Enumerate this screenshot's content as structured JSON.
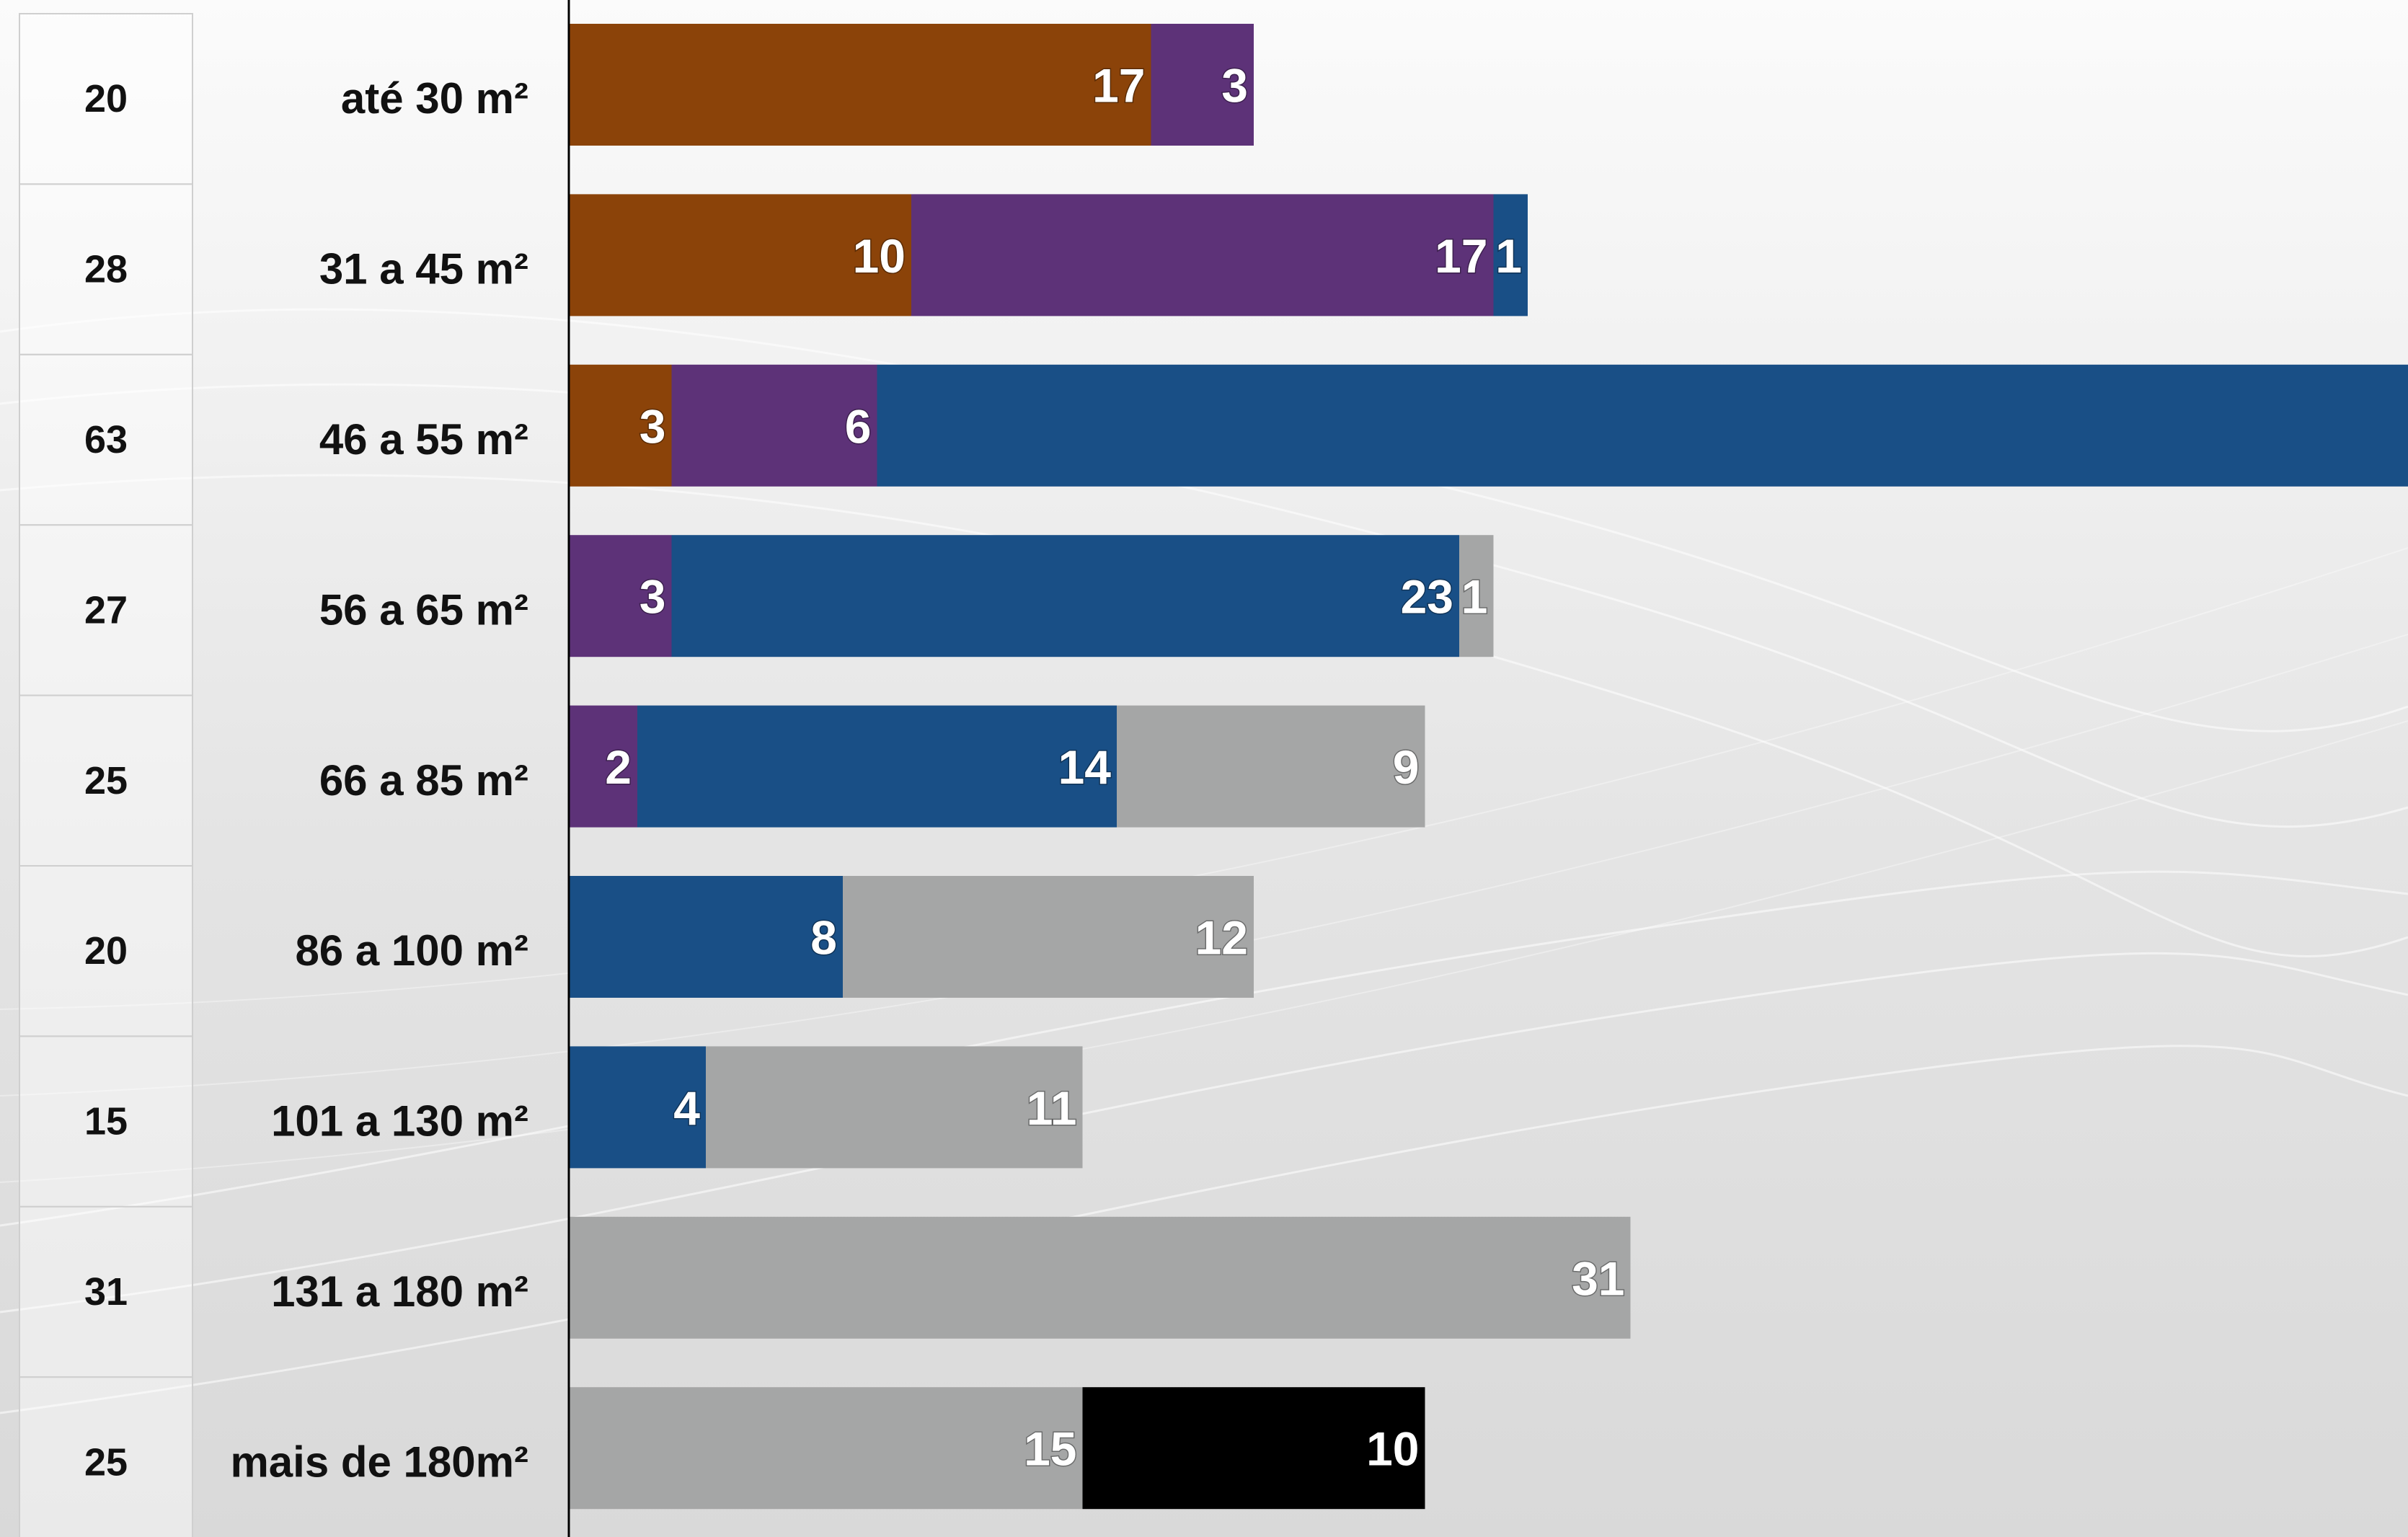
{
  "chart_data": {
    "type": "bar",
    "orientation": "horizontal",
    "stacked": true,
    "categories": [
      "até 30 m²",
      "31 a 45 m²",
      "46 a 55 m²",
      "56 a 65 m²",
      "66 a 85 m²",
      "86 a 100 m²",
      "101 a 130 m²",
      "131 a 180 m²",
      "mais de 180m²"
    ],
    "totals": [
      20,
      28,
      63,
      27,
      25,
      20,
      15,
      31,
      25
    ],
    "series": [
      {
        "color": "#8b4309",
        "values": [
          17,
          10,
          3,
          0,
          0,
          0,
          0,
          0,
          0
        ]
      },
      {
        "color": "#5d3278",
        "values": [
          3,
          17,
          6,
          3,
          2,
          0,
          0,
          0,
          0
        ]
      },
      {
        "color": "#194f86",
        "values": [
          0,
          1,
          54,
          23,
          14,
          8,
          4,
          0,
          0
        ]
      },
      {
        "color": "#a5a6a6",
        "values": [
          0,
          0,
          0,
          1,
          9,
          12,
          11,
          31,
          15
        ]
      },
      {
        "color": "#000000",
        "values": [
          0,
          0,
          0,
          0,
          0,
          0,
          0,
          0,
          10
        ]
      }
    ],
    "grid": false,
    "legend": "none"
  }
}
